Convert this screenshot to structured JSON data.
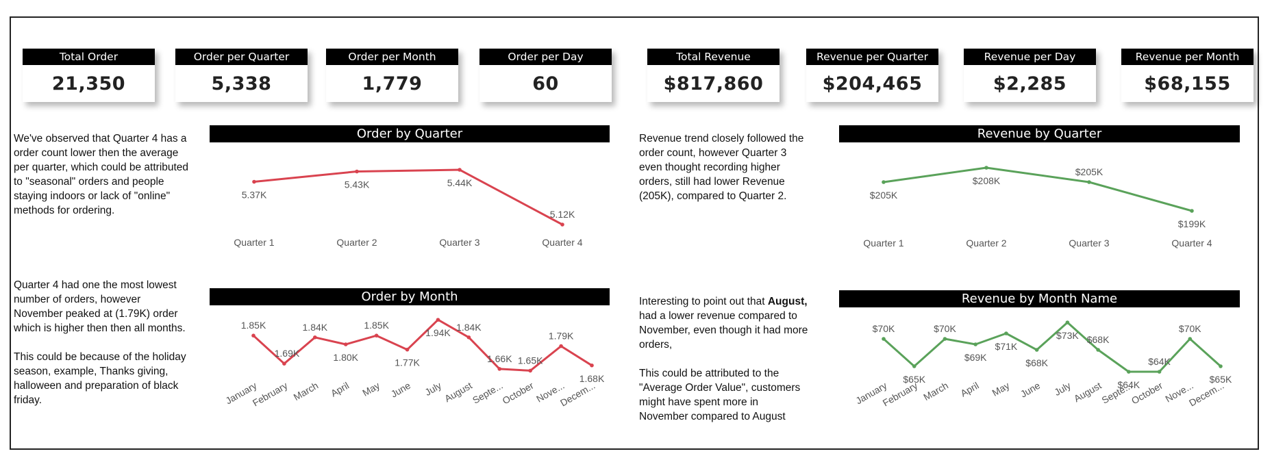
{
  "kpis": [
    {
      "label": "Total Order",
      "value": "21,350"
    },
    {
      "label": "Order per Quarter",
      "value": "5,338"
    },
    {
      "label": "Order per Month",
      "value": "1,779"
    },
    {
      "label": "Order per Day",
      "value": "60"
    },
    {
      "label": "Total Revenue",
      "value": "$817,860"
    },
    {
      "label": "Revenue per Quarter",
      "value": "$204,465"
    },
    {
      "label": "Revenue per Day",
      "value": "$2,285"
    },
    {
      "label": "Revenue per Month",
      "value": "$68,155"
    }
  ],
  "notes": {
    "order_quarter": "We've observed that Quarter 4 has a order count lower then the average per quarter, which could be attributed to \"seasonal\" orders and people staying indoors or lack of \"online\" methods for ordering.",
    "order_month_1": "Quarter 4 had one the most lowest number of orders, however November peaked at (1.79K) order which is higher then then all months.",
    "order_month_2": "This could be because of the holiday season, example, Thanks giving, halloween and preparation of black friday.",
    "revenue_quarter": "Revenue trend closely followed the order count, however Quarter 3 even thought recording higher orders, still had lower Revenue (205K), compared to Quarter 2.",
    "revenue_month_1_pre": "Interesting to point out that ",
    "revenue_month_1_bold": "August,",
    "revenue_month_1_post": " had a lower revenue compared to November, even though it had more orders,",
    "revenue_month_2": "This could be attributed to the \"Average Order Value\", customers might have spent more in November compared to August"
  },
  "colors": {
    "order_line": "#d9434f",
    "revenue_line": "#5aa25a"
  },
  "chart_data": [
    {
      "type": "line",
      "title": "Order by Quarter",
      "categories": [
        "Quarter 1",
        "Quarter 2",
        "Quarter 3",
        "Quarter 4"
      ],
      "values": [
        5370,
        5430,
        5440,
        5120
      ],
      "labels": [
        "5.37K",
        "5.43K",
        "5.44K",
        "5.12K"
      ],
      "ylim": [
        5100,
        5460
      ]
    },
    {
      "type": "line",
      "title": "Order by Month",
      "categories": [
        "January",
        "February",
        "March",
        "April",
        "May",
        "June",
        "July",
        "August",
        "Septe...",
        "October",
        "Nove...",
        "Decem..."
      ],
      "values": [
        1850,
        1690,
        1840,
        1800,
        1850,
        1770,
        1940,
        1840,
        1660,
        1650,
        1790,
        1680
      ],
      "labels": [
        "1.85K",
        "1.69K",
        "1.84K",
        "1.80K",
        "1.85K",
        "1.77K",
        "1.94K",
        "1.84K",
        "1.66K",
        "1.65K",
        "1.79K",
        "1.68K"
      ],
      "ylim": [
        1640,
        1960
      ]
    },
    {
      "type": "line",
      "title": "Revenue by Quarter",
      "categories": [
        "Quarter 1",
        "Quarter 2",
        "Quarter 3",
        "Quarter 4"
      ],
      "values": [
        205000,
        208000,
        205000,
        199000
      ],
      "labels": [
        "$205K",
        "$208K",
        "$205K",
        "$199K"
      ],
      "ylim": [
        198000,
        209000
      ]
    },
    {
      "type": "line",
      "title": "Revenue by Month Name",
      "categories": [
        "January",
        "February",
        "March",
        "April",
        "May",
        "June",
        "July",
        "August",
        "Septe...",
        "October",
        "Nove...",
        "Decem..."
      ],
      "values": [
        70000,
        65000,
        70000,
        69000,
        71000,
        68000,
        73000,
        68000,
        64000,
        64000,
        70000,
        65000
      ],
      "labels": [
        "$70K",
        "$65K",
        "$70K",
        "$69K",
        "$71K",
        "$68K",
        "$73K",
        "$68K",
        "$64K",
        "$64K",
        "$70K",
        "$65K"
      ],
      "ylim": [
        63000,
        74000
      ]
    }
  ]
}
